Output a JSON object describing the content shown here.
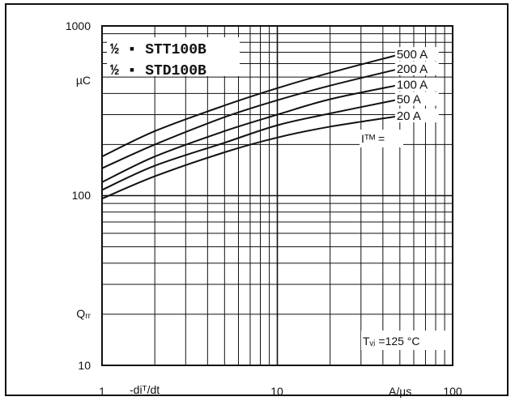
{
  "chart_data": {
    "type": "line",
    "x_scale": "log",
    "y_scale": "log",
    "xlim": [
      1,
      100
    ],
    "ylim": [
      10,
      1000
    ],
    "grid": true,
    "x_ticks": [
      "1",
      "10",
      "100"
    ],
    "y_ticks": [
      "10",
      "100",
      "1000"
    ],
    "x_label": "-diᵀ/dt",
    "x_unit": "A/µs",
    "y_label": "Qᵣᵣ",
    "y_unit": "µC",
    "part_labels": [
      "½ ▪ STT100B",
      "½ ▪ STD100B"
    ],
    "series_param": "Iᵀᴹ =",
    "condition": "Tᵥⱼ =125 °C",
    "series": [
      {
        "name": "500 A",
        "x": [
          1,
          2,
          5,
          10,
          20,
          50
        ],
        "y": [
          170,
          240,
          340,
          430,
          530,
          680
        ]
      },
      {
        "name": "200 A",
        "x": [
          1,
          2,
          5,
          10,
          20,
          50
        ],
        "y": [
          145,
          200,
          290,
          365,
          445,
          560
        ]
      },
      {
        "name": "100 A",
        "x": [
          1,
          2,
          5,
          10,
          20,
          50
        ],
        "y": [
          120,
          170,
          240,
          300,
          370,
          450
        ]
      },
      {
        "name": "50 A",
        "x": [
          1,
          2,
          5,
          10,
          20,
          50
        ],
        "y": [
          108,
          150,
          205,
          260,
          305,
          370
        ]
      },
      {
        "name": "20 A",
        "x": [
          1,
          2,
          5,
          10,
          20,
          50
        ],
        "y": [
          96,
          130,
          180,
          220,
          255,
          295
        ]
      }
    ]
  }
}
